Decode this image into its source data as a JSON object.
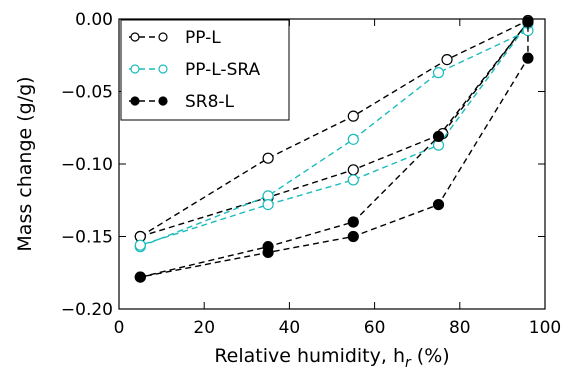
{
  "chart_data": {
    "type": "scatter",
    "xlabel": "Relative humidity, h",
    "xlabel_subscript": "r",
    "xlabel_suffix": " (%)",
    "ylabel": "Mass change (g/g)",
    "xlim": [
      0,
      100
    ],
    "ylim": [
      -0.2,
      0.0
    ],
    "xticks": [
      0,
      20,
      40,
      60,
      80,
      100
    ],
    "xtick_labels": [
      "0",
      "20",
      "40",
      "60",
      "80",
      "100"
    ],
    "yticks": [
      0.0,
      -0.05,
      -0.1,
      -0.15,
      -0.2
    ],
    "ytick_labels": [
      "0.00",
      "−0.05",
      "−0.10",
      "−0.15",
      "−0.20"
    ],
    "grid": false,
    "legend_position": "top-left",
    "series": [
      {
        "name": "PP-L",
        "color": "#000000",
        "marker": "open-circle",
        "line": "dashed",
        "x": [
          5,
          35,
          55,
          77,
          96,
          96,
          76,
          55,
          35,
          5
        ],
        "y": [
          -0.15,
          -0.096,
          -0.067,
          -0.028,
          -0.001,
          -0.002,
          -0.079,
          -0.104,
          -0.123,
          -0.15
        ]
      },
      {
        "name": "PP-L-SRA",
        "color": "#1abcbc",
        "marker": "open-circle",
        "line": "dashed",
        "x": [
          5,
          35,
          55,
          75,
          96,
          96,
          75,
          55,
          35,
          5
        ],
        "y": [
          -0.157,
          -0.122,
          -0.083,
          -0.037,
          -0.008,
          -0.003,
          -0.087,
          -0.111,
          -0.128,
          -0.156
        ]
      },
      {
        "name": "SR8-L",
        "color": "#000000",
        "marker": "filled-circle",
        "line": "dashed",
        "x": [
          5,
          35,
          55,
          75,
          96,
          96,
          75,
          55,
          35,
          5
        ],
        "y": [
          -0.178,
          -0.157,
          -0.14,
          -0.081,
          -0.002,
          -0.027,
          -0.128,
          -0.15,
          -0.161,
          -0.178
        ]
      }
    ]
  }
}
